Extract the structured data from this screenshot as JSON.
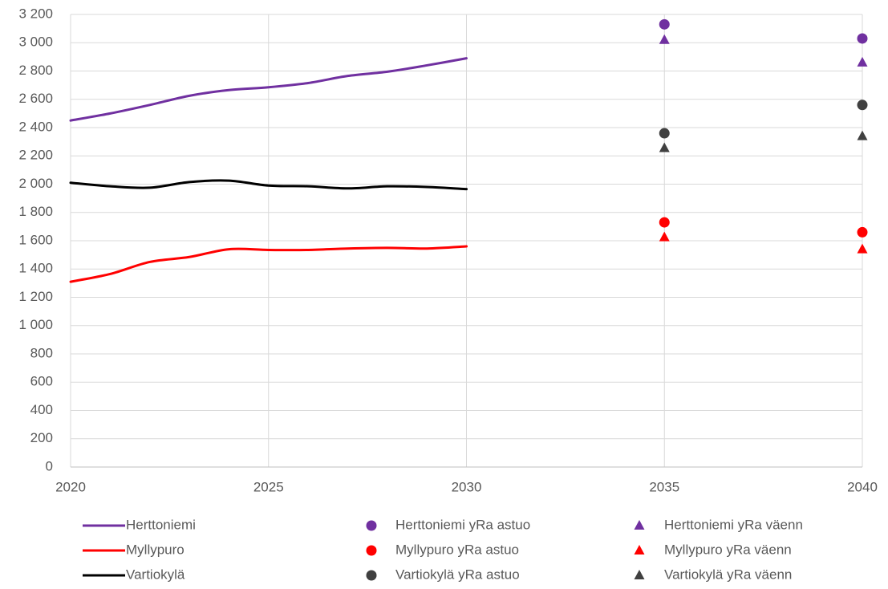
{
  "chart_data": {
    "type": "line",
    "xlim": [
      2020,
      2040
    ],
    "xticks": [
      2020,
      2025,
      2030,
      2035,
      2040
    ],
    "ylim": [
      0,
      3200
    ],
    "yticks": [
      0,
      200,
      400,
      600,
      800,
      {
        "value": 1000,
        "label": "1 000"
      },
      {
        "value": 1200,
        "label": "1 200"
      },
      {
        "value": 1400,
        "label": "1 400"
      },
      {
        "value": 1600,
        "label": "1 600"
      },
      {
        "value": 1800,
        "label": "1 800"
      },
      {
        "value": 2000,
        "label": "2 000"
      },
      {
        "value": 2200,
        "label": "2 200"
      },
      {
        "value": 2400,
        "label": "2 400"
      },
      {
        "value": 2600,
        "label": "2 600"
      },
      {
        "value": 2800,
        "label": "2 800"
      },
      {
        "value": 3000,
        "label": "3 000"
      },
      {
        "value": 3200,
        "label": "3 200"
      }
    ],
    "grid": true,
    "series": [
      {
        "name": "Herttoniemi",
        "color": "#7030a0",
        "marker": "line",
        "x": [
          2020,
          2021,
          2022,
          2023,
          2024,
          2025,
          2026,
          2027,
          2028,
          2029,
          2030
        ],
        "values": [
          2450,
          2500,
          2560,
          2625,
          2665,
          2685,
          2715,
          2765,
          2795,
          2840,
          2890
        ]
      },
      {
        "name": "Myllypuro",
        "color": "#ff0000",
        "marker": "line",
        "x": [
          2020,
          2021,
          2022,
          2023,
          2024,
          2025,
          2026,
          2027,
          2028,
          2029,
          2030
        ],
        "values": [
          1310,
          1365,
          1450,
          1485,
          1540,
          1535,
          1535,
          1545,
          1550,
          1545,
          1560
        ]
      },
      {
        "name": "Vartiokylä",
        "color": "#000000",
        "marker": "line",
        "x": [
          2020,
          2021,
          2022,
          2023,
          2024,
          2025,
          2026,
          2027,
          2028,
          2029,
          2030
        ],
        "values": [
          2010,
          1985,
          1975,
          2015,
          2025,
          1990,
          1985,
          1970,
          1985,
          1980,
          1965
        ]
      },
      {
        "name": "Herttoniemi yRa astuo",
        "color": "#7030a0",
        "marker": "circle",
        "x": [
          2035,
          2040
        ],
        "values": [
          3130,
          3030
        ]
      },
      {
        "name": "Myllypuro yRa astuo",
        "color": "#ff0000",
        "marker": "circle",
        "x": [
          2035,
          2040
        ],
        "values": [
          1730,
          1660
        ]
      },
      {
        "name": "Vartiokylä yRa astuo",
        "color": "#404040",
        "marker": "circle",
        "x": [
          2035,
          2040
        ],
        "values": [
          2360,
          2560
        ]
      },
      {
        "name": "Herttoniemi yRa väenn",
        "color": "#7030a0",
        "marker": "triangle",
        "x": [
          2035,
          2040
        ],
        "values": [
          3020,
          2860
        ]
      },
      {
        "name": "Myllypuro yRa väenn",
        "color": "#ff0000",
        "marker": "triangle",
        "x": [
          2035,
          2040
        ],
        "values": [
          1625,
          1540
        ]
      },
      {
        "name": "Vartiokylä yRa väenn",
        "color": "#404040",
        "marker": "triangle",
        "x": [
          2035,
          2040
        ],
        "values": [
          2255,
          2340
        ]
      }
    ]
  }
}
